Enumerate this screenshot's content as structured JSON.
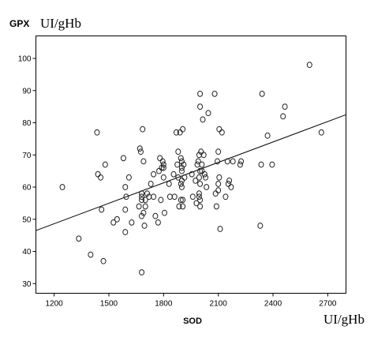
{
  "chart_data": {
    "type": "scatter",
    "title": "",
    "ylabel": "GPX",
    "ylabel_unit": "UI/gHb",
    "xlabel": "SOD",
    "xlabel_unit": "UI/gHb",
    "xlim": [
      1100,
      2800
    ],
    "ylim": [
      27,
      107
    ],
    "xticks": [
      1200,
      1500,
      1800,
      2100,
      2400,
      2700
    ],
    "yticks": [
      30,
      40,
      50,
      60,
      70,
      80,
      90,
      100
    ],
    "grid": false,
    "legend": "none",
    "regression_line": {
      "x": [
        1100,
        2800
      ],
      "y": [
        46.5,
        82.5
      ]
    },
    "colors": {
      "points": "#222222",
      "line": "#000000",
      "frame": "#000000",
      "background": "#ffffff"
    },
    "points": [
      {
        "x": 1245,
        "y": 60
      },
      {
        "x": 1335,
        "y": 44
      },
      {
        "x": 1400,
        "y": 39
      },
      {
        "x": 1435,
        "y": 77
      },
      {
        "x": 1440,
        "y": 64
      },
      {
        "x": 1455,
        "y": 63
      },
      {
        "x": 1460,
        "y": 53
      },
      {
        "x": 1470,
        "y": 37
      },
      {
        "x": 1480,
        "y": 67
      },
      {
        "x": 1525,
        "y": 49
      },
      {
        "x": 1545,
        "y": 50
      },
      {
        "x": 1580,
        "y": 69
      },
      {
        "x": 1595,
        "y": 57
      },
      {
        "x": 1590,
        "y": 53
      },
      {
        "x": 1590,
        "y": 60
      },
      {
        "x": 1590,
        "y": 46
      },
      {
        "x": 1610,
        "y": 63
      },
      {
        "x": 1625,
        "y": 49
      },
      {
        "x": 1665,
        "y": 54
      },
      {
        "x": 1670,
        "y": 72
      },
      {
        "x": 1675,
        "y": 71
      },
      {
        "x": 1680,
        "y": 58
      },
      {
        "x": 1680,
        "y": 57
      },
      {
        "x": 1680,
        "y": 56
      },
      {
        "x": 1680,
        "y": 51
      },
      {
        "x": 1680,
        "y": 33.5
      },
      {
        "x": 1685,
        "y": 78
      },
      {
        "x": 1690,
        "y": 68
      },
      {
        "x": 1690,
        "y": 52
      },
      {
        "x": 1695,
        "y": 48
      },
      {
        "x": 1700,
        "y": 56
      },
      {
        "x": 1700,
        "y": 54
      },
      {
        "x": 1710,
        "y": 58
      },
      {
        "x": 1720,
        "y": 57
      },
      {
        "x": 1730,
        "y": 61
      },
      {
        "x": 1745,
        "y": 64
      },
      {
        "x": 1745,
        "y": 57
      },
      {
        "x": 1755,
        "y": 51
      },
      {
        "x": 1770,
        "y": 49
      },
      {
        "x": 1775,
        "y": 65
      },
      {
        "x": 1780,
        "y": 69
      },
      {
        "x": 1785,
        "y": 56
      },
      {
        "x": 1790,
        "y": 66
      },
      {
        "x": 1795,
        "y": 68
      },
      {
        "x": 1800,
        "y": 63
      },
      {
        "x": 1800,
        "y": 66
      },
      {
        "x": 1800,
        "y": 67
      },
      {
        "x": 1805,
        "y": 52
      },
      {
        "x": 1830,
        "y": 61
      },
      {
        "x": 1835,
        "y": 57
      },
      {
        "x": 1855,
        "y": 64
      },
      {
        "x": 1860,
        "y": 57
      },
      {
        "x": 1870,
        "y": 77
      },
      {
        "x": 1875,
        "y": 67
      },
      {
        "x": 1880,
        "y": 71
      },
      {
        "x": 1880,
        "y": 63
      },
      {
        "x": 1885,
        "y": 54
      },
      {
        "x": 1890,
        "y": 77
      },
      {
        "x": 1895,
        "y": 61
      },
      {
        "x": 1895,
        "y": 69
      },
      {
        "x": 1895,
        "y": 56
      },
      {
        "x": 1900,
        "y": 65
      },
      {
        "x": 1900,
        "y": 66
      },
      {
        "x": 1900,
        "y": 62
      },
      {
        "x": 1900,
        "y": 60
      },
      {
        "x": 1900,
        "y": 68
      },
      {
        "x": 1905,
        "y": 78
      },
      {
        "x": 1905,
        "y": 56
      },
      {
        "x": 1905,
        "y": 54
      },
      {
        "x": 1910,
        "y": 67
      },
      {
        "x": 1915,
        "y": 63
      },
      {
        "x": 1955,
        "y": 64
      },
      {
        "x": 1960,
        "y": 57
      },
      {
        "x": 1975,
        "y": 62
      },
      {
        "x": 1980,
        "y": 55
      },
      {
        "x": 1985,
        "y": 67
      },
      {
        "x": 1990,
        "y": 68
      },
      {
        "x": 1995,
        "y": 70
      },
      {
        "x": 1995,
        "y": 63
      },
      {
        "x": 1995,
        "y": 58
      },
      {
        "x": 1995,
        "y": 57
      },
      {
        "x": 2000,
        "y": 89
      },
      {
        "x": 2000,
        "y": 85
      },
      {
        "x": 2000,
        "y": 65
      },
      {
        "x": 2000,
        "y": 61
      },
      {
        "x": 2000,
        "y": 56
      },
      {
        "x": 2000,
        "y": 54
      },
      {
        "x": 2005,
        "y": 71
      },
      {
        "x": 2010,
        "y": 65
      },
      {
        "x": 2010,
        "y": 67
      },
      {
        "x": 2015,
        "y": 81
      },
      {
        "x": 2020,
        "y": 70
      },
      {
        "x": 2025,
        "y": 64
      },
      {
        "x": 2030,
        "y": 63
      },
      {
        "x": 2035,
        "y": 60
      },
      {
        "x": 2045,
        "y": 83
      },
      {
        "x": 2080,
        "y": 89
      },
      {
        "x": 2085,
        "y": 58
      },
      {
        "x": 2090,
        "y": 54
      },
      {
        "x": 2095,
        "y": 68
      },
      {
        "x": 2100,
        "y": 71
      },
      {
        "x": 2100,
        "y": 61
      },
      {
        "x": 2100,
        "y": 59
      },
      {
        "x": 2105,
        "y": 78
      },
      {
        "x": 2105,
        "y": 63
      },
      {
        "x": 2110,
        "y": 47
      },
      {
        "x": 2120,
        "y": 77
      },
      {
        "x": 2140,
        "y": 57
      },
      {
        "x": 2150,
        "y": 68
      },
      {
        "x": 2155,
        "y": 61
      },
      {
        "x": 2160,
        "y": 62
      },
      {
        "x": 2170,
        "y": 60
      },
      {
        "x": 2180,
        "y": 68
      },
      {
        "x": 2220,
        "y": 67
      },
      {
        "x": 2225,
        "y": 68
      },
      {
        "x": 2330,
        "y": 48
      },
      {
        "x": 2335,
        "y": 67
      },
      {
        "x": 2340,
        "y": 89
      },
      {
        "x": 2370,
        "y": 76
      },
      {
        "x": 2395,
        "y": 67
      },
      {
        "x": 2455,
        "y": 82
      },
      {
        "x": 2465,
        "y": 85
      },
      {
        "x": 2600,
        "y": 98
      },
      {
        "x": 2665,
        "y": 77
      }
    ]
  }
}
